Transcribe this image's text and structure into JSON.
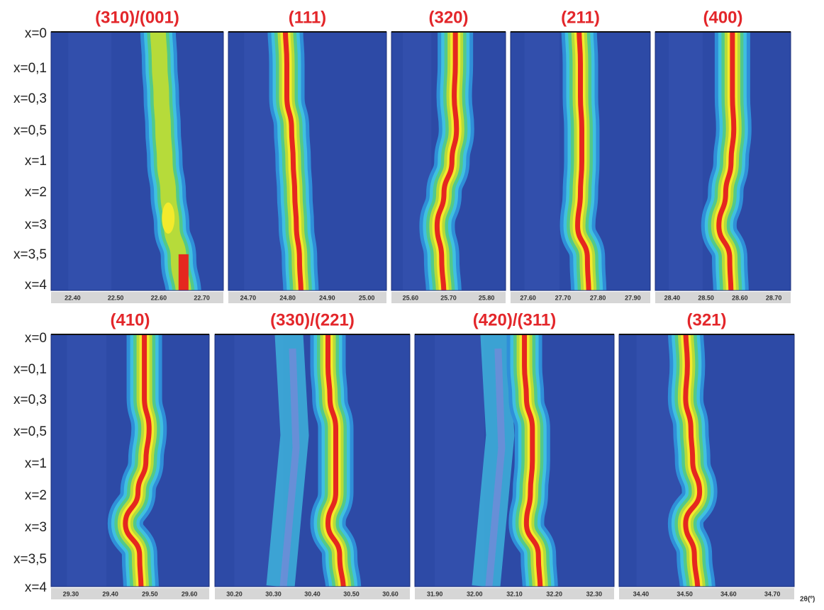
{
  "rows": [
    {
      "y_labels": [
        "x=0",
        "x=0,1",
        "x=0,3",
        "x=0,5",
        "x=1",
        "x=2",
        "x=3",
        "x=3,5",
        "x=4"
      ],
      "panels": [
        {
          "title": "(310)/(001)",
          "ticks": [
            "22.40",
            "22.50",
            "22.60",
            "22.70"
          ]
        },
        {
          "title": "(111)",
          "ticks": [
            "24.70",
            "24.80",
            "24.90",
            "25.00"
          ]
        },
        {
          "title": "(320)",
          "ticks": [
            "25.60",
            "25.70",
            "25.80"
          ]
        },
        {
          "title": "(211)",
          "ticks": [
            "27.60",
            "27.70",
            "27.80",
            "27.90"
          ]
        },
        {
          "title": "(400)",
          "ticks": [
            "28.40",
            "28.50",
            "28.60",
            "28.70"
          ]
        }
      ]
    },
    {
      "y_labels": [
        "x=0",
        "x=0,1",
        "x=0,3",
        "x=0,5",
        "x=1",
        "x=2",
        "x=3",
        "x=3,5",
        "x=4"
      ],
      "panels": [
        {
          "title": "(410)",
          "ticks": [
            "29.30",
            "29.40",
            "29.50",
            "29.60"
          ]
        },
        {
          "title": "(330)/(221)",
          "ticks": [
            "30.20",
            "30.30",
            "30.40",
            "30.50",
            "30.60"
          ]
        },
        {
          "title": "(420)/(311)",
          "ticks": [
            "31.90",
            "32.00",
            "32.10",
            "32.20",
            "32.30"
          ]
        },
        {
          "title": "(321)",
          "ticks": [
            "34.40",
            "34.50",
            "34.60",
            "34.70"
          ]
        }
      ]
    }
  ],
  "axis_label": "2θ(º)"
}
